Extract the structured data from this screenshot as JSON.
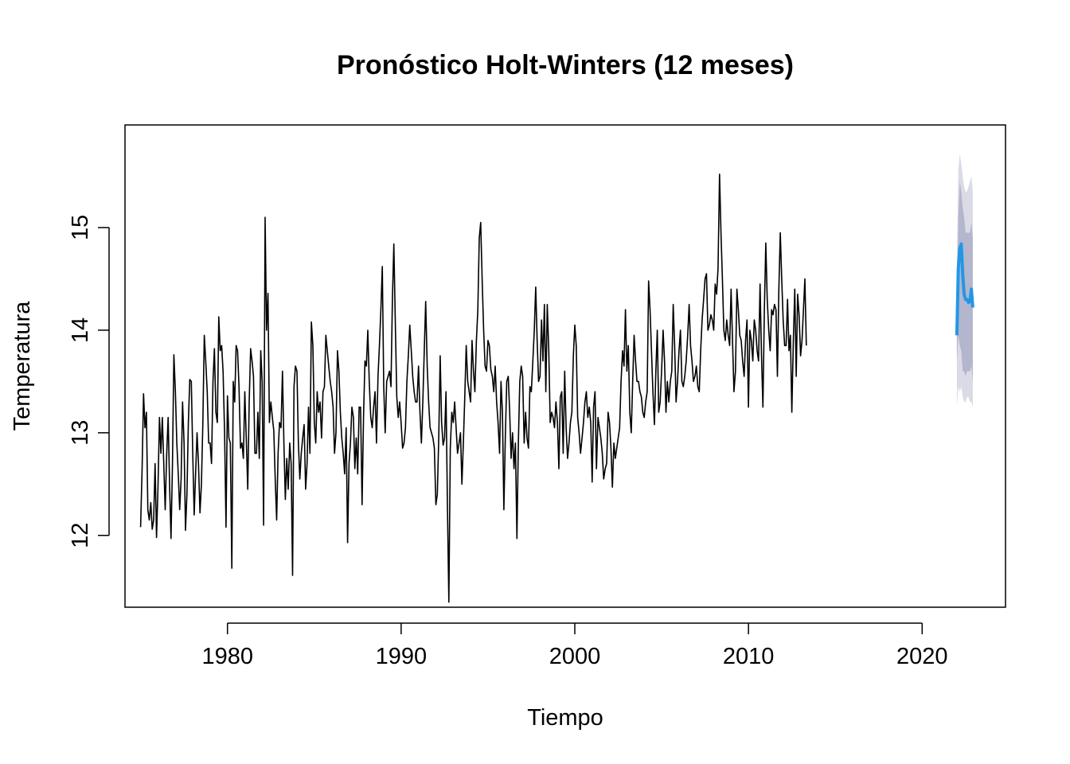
{
  "chart_data": {
    "type": "line",
    "title": "Pronóstico Holt-Winters (12 meses)",
    "xlabel": "Tiempo",
    "ylabel": "Temperatura",
    "xlim": [
      1974.1,
      2024.8
    ],
    "ylim": [
      11.3,
      16.0
    ],
    "x_ticks": [
      1980,
      1990,
      2000,
      2010,
      2020
    ],
    "y_ticks": [
      12,
      13,
      14,
      15
    ],
    "grid": false,
    "legend": "none",
    "colors": {
      "observed": "#000000",
      "forecast": "#2297e6",
      "band80": "#b3b6cc",
      "band95": "#dadbe6"
    },
    "series": [
      {
        "kind": "observed",
        "x_start": 1975.0,
        "step": 0.08333,
        "values": [
          12.08,
          12.65,
          13.38,
          13.05,
          13.2,
          12.25,
          12.15,
          12.32,
          12.06,
          12.15,
          12.7,
          11.98,
          12.45,
          13.15,
          12.8,
          13.15,
          12.7,
          12.25,
          12.8,
          13.15,
          12.5,
          11.97,
          12.68,
          13.76,
          13.4,
          12.9,
          12.6,
          12.25,
          12.55,
          13.3,
          12.9,
          12.05,
          12.4,
          13.1,
          13.52,
          13.5,
          12.8,
          12.2,
          12.6,
          13.0,
          12.7,
          12.22,
          12.5,
          13.1,
          13.95,
          13.7,
          13.4,
          12.9,
          12.9,
          12.7,
          13.5,
          13.82,
          13.2,
          13.1,
          14.13,
          13.8,
          13.85,
          13.6,
          13.0,
          12.08,
          13.36,
          12.95,
          12.9,
          11.68,
          13.5,
          13.3,
          13.85,
          13.8,
          13.45,
          12.85,
          12.9,
          12.75,
          13.4,
          12.95,
          12.45,
          13.3,
          13.82,
          13.7,
          13.55,
          12.8,
          12.8,
          13.2,
          12.75,
          13.8,
          13.5,
          12.1,
          15.1,
          14.0,
          14.36,
          13.1,
          13.3,
          13.15,
          13.02,
          12.55,
          12.15,
          12.8,
          13.1,
          13.05,
          13.6,
          12.9,
          12.35,
          12.75,
          12.45,
          12.9,
          12.7,
          11.61,
          13.45,
          13.65,
          13.6,
          12.9,
          12.55,
          12.8,
          12.95,
          13.08,
          12.45,
          12.7,
          13.25,
          12.8,
          14.08,
          13.85,
          13.1,
          12.9,
          13.4,
          13.2,
          13.3,
          12.95,
          13.4,
          13.45,
          13.95,
          13.8,
          13.65,
          13.5,
          13.4,
          13.25,
          12.8,
          13.0,
          13.8,
          13.6,
          13.2,
          12.95,
          12.8,
          12.6,
          13.05,
          11.93,
          12.7,
          12.9,
          13.25,
          13.15,
          12.65,
          12.95,
          12.6,
          13.25,
          13.25,
          12.3,
          13.15,
          13.7,
          13.65,
          14.0,
          13.5,
          13.15,
          13.05,
          13.25,
          13.4,
          12.9,
          13.55,
          13.85,
          14.2,
          14.62,
          13.45,
          13.0,
          13.5,
          13.55,
          13.6,
          13.45,
          14.3,
          14.84,
          14.05,
          13.35,
          13.15,
          13.3,
          13.1,
          12.85,
          12.9,
          13.05,
          13.5,
          13.75,
          14.05,
          13.8,
          13.55,
          13.4,
          13.3,
          13.3,
          13.65,
          13.2,
          12.9,
          13.3,
          13.8,
          14.28,
          13.65,
          13.3,
          13.05,
          13.0,
          12.95,
          12.85,
          12.3,
          12.4,
          12.95,
          13.75,
          13.1,
          12.88,
          12.95,
          13.4,
          12.3,
          11.35,
          12.85,
          13.2,
          13.1,
          13.3,
          13.05,
          12.8,
          12.9,
          13.0,
          12.5,
          12.9,
          13.35,
          13.85,
          13.5,
          13.4,
          13.3,
          13.9,
          13.6,
          13.4,
          13.9,
          14.2,
          14.9,
          15.05,
          14.5,
          14.0,
          13.65,
          13.6,
          13.9,
          13.85,
          13.62,
          13.55,
          13.4,
          13.65,
          13.3,
          13.1,
          12.8,
          13.5,
          13.2,
          12.25,
          12.95,
          13.5,
          13.55,
          13.2,
          12.75,
          13.0,
          12.65,
          12.9,
          11.97,
          12.9,
          13.5,
          13.65,
          13.55,
          12.9,
          13.2,
          12.95,
          12.85,
          13.45,
          13.4,
          13.7,
          14.0,
          14.42,
          13.9,
          13.5,
          13.55,
          14.1,
          13.7,
          14.25,
          13.4,
          14.25,
          13.8,
          13.1,
          13.2,
          13.15,
          13.05,
          13.3,
          13.1,
          12.65,
          13.35,
          13.4,
          12.8,
          13.6,
          13.05,
          12.75,
          12.9,
          13.1,
          13.2,
          13.75,
          14.05,
          13.85,
          13.15,
          13.0,
          12.8,
          12.95,
          13.1,
          13.3,
          13.4,
          13.15,
          13.25,
          13.1,
          12.52,
          13.25,
          13.4,
          12.65,
          13.15,
          13.05,
          12.95,
          12.8,
          12.55,
          12.65,
          12.7,
          13.2,
          13.1,
          12.85,
          12.47,
          12.9,
          12.75,
          12.85,
          12.95,
          13.05,
          13.5,
          13.8,
          13.65,
          14.2,
          13.6,
          13.85,
          13.2,
          13.0,
          13.5,
          13.95,
          13.7,
          13.5,
          13.5,
          13.4,
          13.35,
          13.2,
          13.15,
          13.3,
          13.4,
          14.48,
          14.2,
          13.8,
          13.4,
          13.08,
          13.6,
          14.0,
          13.2,
          13.3,
          13.6,
          14.0,
          13.7,
          13.2,
          13.5,
          13.3,
          13.5,
          13.6,
          14.25,
          13.85,
          13.3,
          13.5,
          13.8,
          14.0,
          13.5,
          13.45,
          13.55,
          13.7,
          13.95,
          14.25,
          13.85,
          13.7,
          13.5,
          13.55,
          13.65,
          13.45,
          13.4,
          13.8,
          14.1,
          14.3,
          14.5,
          14.55,
          14.0,
          14.05,
          14.15,
          14.1,
          14.0,
          14.45,
          14.35,
          14.6,
          15.52,
          14.95,
          14.5,
          14.0,
          13.9,
          14.1,
          13.95,
          13.85,
          14.4,
          13.9,
          13.4,
          13.6,
          14.4,
          14.2,
          13.95,
          13.9,
          13.7,
          13.55,
          13.9,
          14.1,
          13.25,
          14.0,
          13.9,
          13.7,
          14.1,
          14.0,
          13.8,
          13.7,
          14.45,
          13.75,
          13.25,
          14.2,
          14.85,
          14.3,
          14.0,
          13.8,
          14.2,
          14.15,
          14.25,
          14.2,
          13.55,
          14.4,
          14.95,
          14.5,
          14.1,
          13.85,
          13.85,
          14.3,
          13.8,
          13.95,
          13.2,
          13.9,
          14.4,
          13.55,
          14.35,
          14.15,
          13.75,
          13.9,
          14.2,
          14.5,
          13.85
        ]
      },
      {
        "kind": "forecast",
        "x_start": 2022.0,
        "step": 0.08333,
        "values": [
          13.95,
          14.6,
          14.8,
          14.84,
          14.55,
          14.35,
          14.3,
          14.3,
          14.27,
          14.28,
          14.4,
          14.22
        ],
        "lower80": [
          13.7,
          13.95,
          13.85,
          13.8,
          13.6,
          13.6,
          13.55,
          13.6,
          13.6,
          13.6,
          13.65,
          13.5
        ],
        "upper80": [
          14.3,
          15.1,
          15.45,
          15.35,
          15.2,
          15.1,
          14.95,
          14.95,
          14.95,
          14.95,
          15.05,
          14.9
        ],
        "lower95": [
          13.25,
          13.45,
          13.4,
          13.45,
          13.35,
          13.3,
          13.3,
          13.35,
          13.35,
          13.3,
          13.3,
          13.25
        ],
        "upper95": [
          14.7,
          15.55,
          15.72,
          15.62,
          15.5,
          15.4,
          15.35,
          15.35,
          15.4,
          15.45,
          15.5,
          15.35
        ]
      }
    ]
  }
}
